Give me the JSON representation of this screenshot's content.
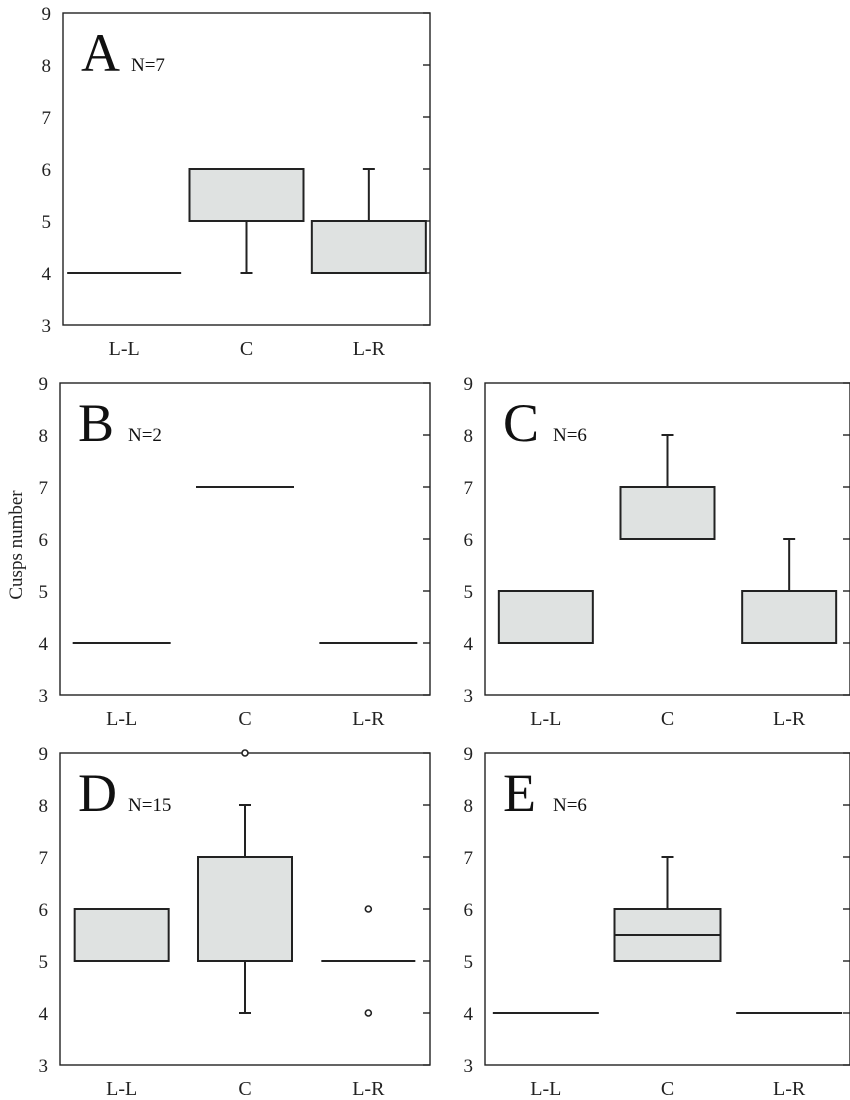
{
  "figure": {
    "ylabel": "Cusps number"
  },
  "chart_data": [
    {
      "type": "box",
      "panel": "A",
      "n_label": "N=7",
      "categories": [
        "L-L",
        "C",
        "L-R"
      ],
      "ylim": [
        3,
        9
      ],
      "yticks": [
        3,
        4,
        5,
        6,
        7,
        8,
        9
      ],
      "boxes": [
        {
          "category": "L-L",
          "min": 4,
          "q1": 4,
          "median": 4,
          "q3": 4,
          "max": 4,
          "outliers": []
        },
        {
          "category": "C",
          "min": 4,
          "q1": 5,
          "median": 6,
          "q3": 6,
          "max": 6,
          "outliers": []
        },
        {
          "category": "L-R",
          "min": 4,
          "q1": 4,
          "median": 4,
          "q3": 5,
          "max": 6,
          "outliers": []
        }
      ]
    },
    {
      "type": "box",
      "panel": "B",
      "n_label": "N=2",
      "categories": [
        "L-L",
        "C",
        "L-R"
      ],
      "ylim": [
        3,
        9
      ],
      "yticks": [
        3,
        4,
        5,
        6,
        7,
        8,
        9
      ],
      "boxes": [
        {
          "category": "L-L",
          "min": 4,
          "q1": 4,
          "median": 4,
          "q3": 4,
          "max": 4,
          "outliers": []
        },
        {
          "category": "C",
          "min": 7,
          "q1": 7,
          "median": 7,
          "q3": 7,
          "max": 7,
          "outliers": []
        },
        {
          "category": "L-R",
          "min": 4,
          "q1": 4,
          "median": 4,
          "q3": 4,
          "max": 4,
          "outliers": []
        }
      ]
    },
    {
      "type": "box",
      "panel": "C",
      "n_label": "N=6",
      "categories": [
        "L-L",
        "C",
        "L-R"
      ],
      "ylim": [
        3,
        9
      ],
      "yticks": [
        3,
        4,
        5,
        6,
        7,
        8,
        9
      ],
      "boxes": [
        {
          "category": "L-L",
          "min": 4,
          "q1": 4,
          "median": 4,
          "q3": 5,
          "max": 5,
          "outliers": []
        },
        {
          "category": "C",
          "min": 6,
          "q1": 6,
          "median": 6,
          "q3": 7,
          "max": 8,
          "outliers": []
        },
        {
          "category": "L-R",
          "min": 4,
          "q1": 4,
          "median": 4,
          "q3": 5,
          "max": 6,
          "outliers": []
        }
      ]
    },
    {
      "type": "box",
      "panel": "D",
      "n_label": "N=15",
      "categories": [
        "L-L",
        "C",
        "L-R"
      ],
      "ylim": [
        3,
        9
      ],
      "yticks": [
        3,
        4,
        5,
        6,
        7,
        8,
        9
      ],
      "boxes": [
        {
          "category": "L-L",
          "min": 5,
          "q1": 5,
          "median": 6,
          "q3": 6,
          "max": 6,
          "outliers": []
        },
        {
          "category": "C",
          "min": 4,
          "q1": 5,
          "median": 7,
          "q3": 7,
          "max": 8,
          "outliers": [
            9
          ]
        },
        {
          "category": "L-R",
          "min": 5,
          "q1": 5,
          "median": 5,
          "q3": 5,
          "max": 5,
          "outliers": [
            6,
            4
          ]
        }
      ]
    },
    {
      "type": "box",
      "panel": "E",
      "n_label": "N=6",
      "categories": [
        "L-L",
        "C",
        "L-R"
      ],
      "ylim": [
        3,
        9
      ],
      "yticks": [
        3,
        4,
        5,
        6,
        7,
        8,
        9
      ],
      "boxes": [
        {
          "category": "L-L",
          "min": 4,
          "q1": 4,
          "median": 4,
          "q3": 4,
          "max": 4,
          "outliers": []
        },
        {
          "category": "C",
          "min": 5,
          "q1": 5,
          "median": 5.5,
          "q3": 6,
          "max": 7,
          "outliers": []
        },
        {
          "category": "L-R",
          "min": 4,
          "q1": 4,
          "median": 4,
          "q3": 4,
          "max": 4,
          "outliers": []
        }
      ]
    }
  ]
}
